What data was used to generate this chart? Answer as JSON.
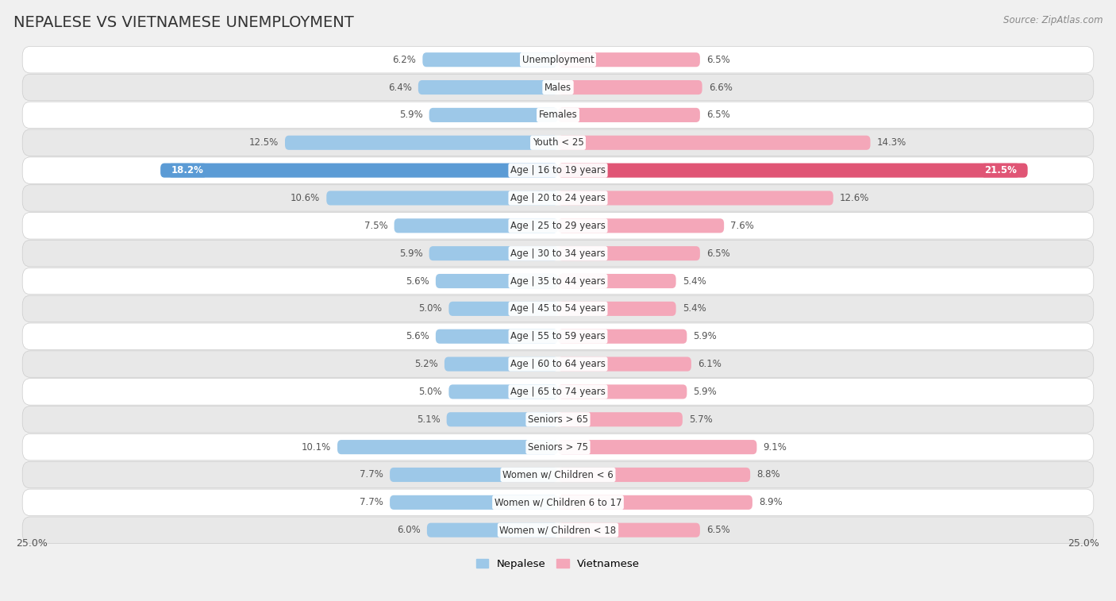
{
  "title": "NEPALESE VS VIETNAMESE UNEMPLOYMENT",
  "source": "Source: ZipAtlas.com",
  "categories": [
    "Unemployment",
    "Males",
    "Females",
    "Youth < 25",
    "Age | 16 to 19 years",
    "Age | 20 to 24 years",
    "Age | 25 to 29 years",
    "Age | 30 to 34 years",
    "Age | 35 to 44 years",
    "Age | 45 to 54 years",
    "Age | 55 to 59 years",
    "Age | 60 to 64 years",
    "Age | 65 to 74 years",
    "Seniors > 65",
    "Seniors > 75",
    "Women w/ Children < 6",
    "Women w/ Children 6 to 17",
    "Women w/ Children < 18"
  ],
  "nepalese": [
    6.2,
    6.4,
    5.9,
    12.5,
    18.2,
    10.6,
    7.5,
    5.9,
    5.6,
    5.0,
    5.6,
    5.2,
    5.0,
    5.1,
    10.1,
    7.7,
    7.7,
    6.0
  ],
  "vietnamese": [
    6.5,
    6.6,
    6.5,
    14.3,
    21.5,
    12.6,
    7.6,
    6.5,
    5.4,
    5.4,
    5.9,
    6.1,
    5.9,
    5.7,
    9.1,
    8.8,
    8.9,
    6.5
  ],
  "nepalese_color": "#9DC8E8",
  "vietnamese_color": "#F4A7B9",
  "nepalese_highlight_color": "#5B9BD5",
  "vietnamese_highlight_color": "#E05575",
  "highlight_row": 4,
  "bg_color": "#f0f0f0",
  "row_bg_even": "#ffffff",
  "row_bg_odd": "#e8e8e8",
  "xlim": 25.0,
  "bar_height": 0.52,
  "legend_nepalese": "Nepalese",
  "legend_vietnamese": "Vietnamese",
  "title_fontsize": 14,
  "source_fontsize": 8.5,
  "value_fontsize": 8.5,
  "category_fontsize": 8.5
}
